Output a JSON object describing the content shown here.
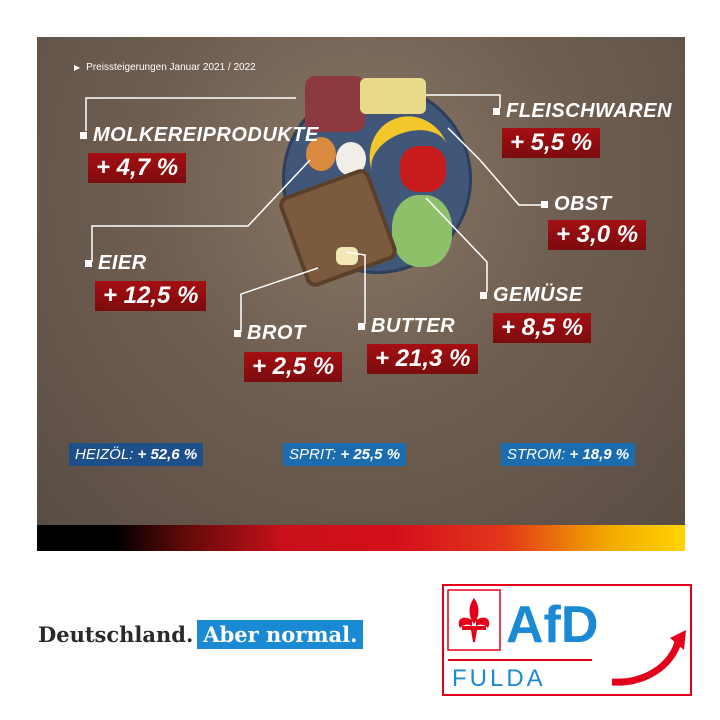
{
  "subtitle": "Preissteigerungen Januar 2021 / 2022",
  "items": [
    {
      "name": "MOLKEREIPRODUKTE",
      "change": "+ 4,7 %"
    },
    {
      "name": "FLEISCHWAREN",
      "change": "+ 5,5 %"
    },
    {
      "name": "OBST",
      "change": "+ 3,0 %"
    },
    {
      "name": "EIER",
      "change": "+ 12,5 %"
    },
    {
      "name": "GEMÜSE",
      "change": "+ 8,5 %"
    },
    {
      "name": "BROT",
      "change": "+ 2,5 %"
    },
    {
      "name": "BUTTER",
      "change": "+ 21,3 %"
    }
  ],
  "energy": [
    {
      "name": "HEIZÖL:",
      "change": "+ 52,6 %"
    },
    {
      "name": "SPRIT:",
      "change": "+ 25,5 %"
    },
    {
      "name": "STROM:",
      "change": "+ 18,9 %"
    }
  ],
  "slogan": {
    "part1": "Deutschland.",
    "part2": "Aber normal."
  },
  "logo": {
    "party": "AfD",
    "region": "FULDA"
  },
  "colors": {
    "price_box": "#8e0d10",
    "energy_box": "#1d4f8a",
    "afd_blue": "#1a8ad4",
    "afd_red": "#e3001b"
  }
}
